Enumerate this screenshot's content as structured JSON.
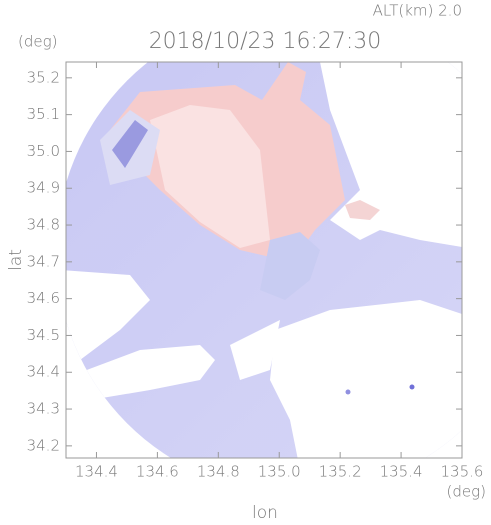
{
  "chart_data": {
    "type": "map",
    "title": "2018/10/23 16:27:30",
    "subtitle": "ALT(km) 2.0",
    "x_label": "lon",
    "x_unit": "(deg)",
    "y_label": "lat",
    "y_unit": "(deg)",
    "xlim": [
      134.3,
      135.6
    ],
    "ylim": [
      34.167,
      35.243
    ],
    "xticks": [
      134.4,
      134.6,
      134.8,
      {
        "value": 135.0,
        "label": "135.0"
      },
      135.2,
      135.4,
      135.6
    ],
    "yticks": [
      34.2,
      34.3,
      34.4,
      34.5,
      34.6,
      34.7,
      34.8,
      34.9,
      {
        "value": 35.0,
        "label": "35.0"
      },
      35.1,
      35.2
    ]
  }
}
